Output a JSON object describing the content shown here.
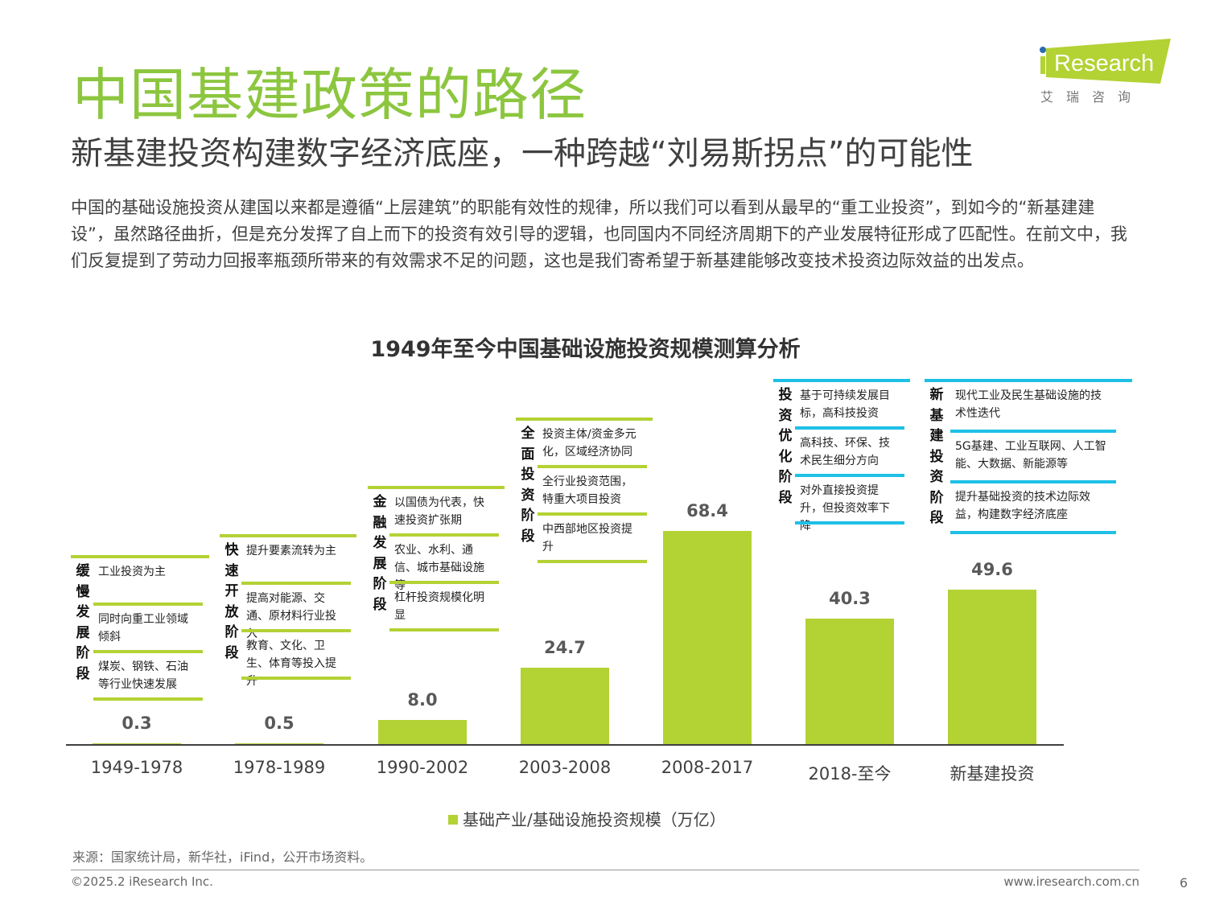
{
  "header": {
    "title": "中国基建政策的路径",
    "subtitle": "新基建投资构建数字经济底座，一种跨越“刘易斯拐点”的可能性"
  },
  "logo": {
    "text": "Research",
    "prefix": "i",
    "cn": "艾　瑞　咨　询",
    "color": "#b3d234"
  },
  "body": "中国的基础设施投资从建国以来都是遵循“上层建筑”的职能有效性的规律，所以我们可以看到从最早的“重工业投资”，到如今的“新基建建设”，虽然路径曲折，但是充分发挥了自上而下的投资有效引导的逻辑，也同国内不同经济周期下的产业发展特征形成了匹配性。在前文中，我们反复提到了劳动力回报率瓶颈所带来的有效需求不足的问题，这也是我们寄希望于新基建能够改变技术投资边际效益的出发点。",
  "chart_data": {
    "type": "bar",
    "title": "1949年至今中国基础设施投资规模测算分析",
    "categories": [
      "1949-1978",
      "1978-1989",
      "1990-2002",
      "2003-2008",
      "2008-2017",
      "2018-至今",
      "新基建投资"
    ],
    "series": [
      {
        "name": "基础产业/基础设施投资规模（万亿）",
        "values": [
          0.3,
          0.5,
          8.0,
          24.7,
          68.4,
          40.3,
          49.6
        ],
        "labels": [
          "0.3",
          "0.5",
          "8.0",
          "24.7",
          "68.4",
          "40.3",
          "49.6"
        ],
        "color": "#b3d234"
      }
    ],
    "ylim": [
      0,
      70
    ],
    "grid": false,
    "legend": "bottom"
  },
  "stages": [
    {
      "name": "缓慢发展阶段",
      "color": "#b3d234",
      "items": [
        "工业投资为主",
        "同时向重工业领域倾斜",
        "煤炭、钢铁、石油等行业快速发展"
      ]
    },
    {
      "name": "快速开放阶段",
      "color": "#b3d234",
      "items": [
        "提升要素流转为主",
        "提高对能源、交通、原材料行业投入",
        "教育、文化、卫生、体育等投入提升"
      ]
    },
    {
      "name": "金融发展阶段",
      "color": "#b3d234",
      "items": [
        "以国债为代表，快速投资扩张期",
        "农业、水利、通信、城市基础设施等",
        "杠杆投资规模化明显"
      ]
    },
    {
      "name": "全面投资阶段",
      "color": "#b3d234",
      "items": [
        "投资主体/资金多元化，区域经济协同",
        "全行业投资范围，特重大项目投资",
        "中西部地区投资提升"
      ]
    },
    {
      "name": "投资优化阶段",
      "color": "#1ec0e6",
      "items": [
        "基于可持续发展目标，高科技投资",
        "高科技、环保、技术民生细分方向",
        "对外直接投资提升，但投资效率下降"
      ]
    },
    {
      "name": "新基建投资阶段",
      "color": "#1ec0e6",
      "items": [
        "现代工业及民生基础设施的技术性迭代",
        "5G基建、工业互联网、人工智能、大数据、新能源等",
        "提升基础投资的技术边际效益，构建数字经济底座"
      ]
    }
  ],
  "footer": {
    "source": "来源：国家统计局，新华社，iFind，公开市场资料。",
    "copyright": "©2025.2 iResearch Inc.",
    "website": "www.iresearch.com.cn",
    "page": "6"
  }
}
